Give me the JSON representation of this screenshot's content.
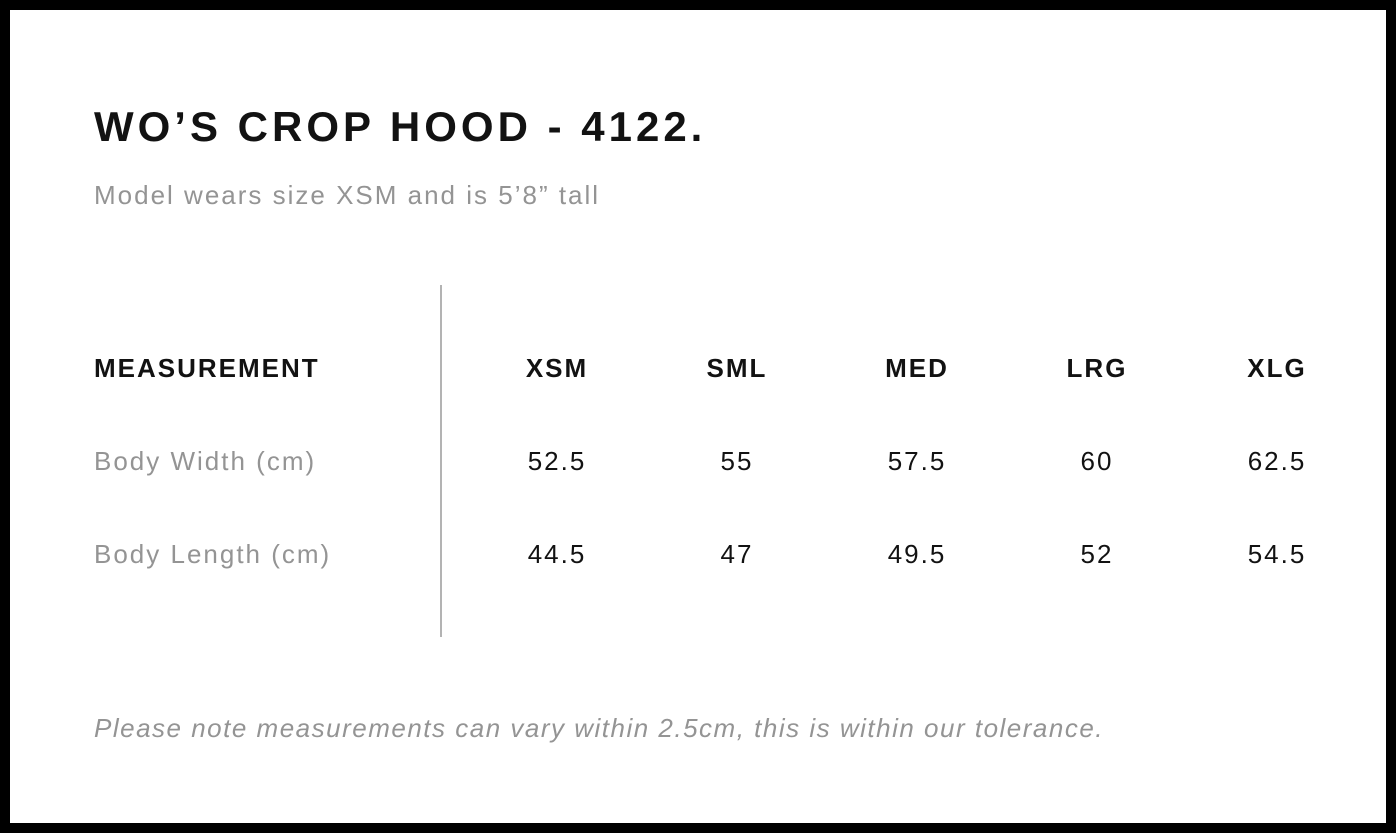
{
  "page": {
    "title": "WO’S CROP HOOD - 4122.",
    "subtitle": "Model wears size XSM and is 5’8” tall",
    "note": "Please note measurements can vary within 2.5cm, this is within our tolerance."
  },
  "size_chart": {
    "measurement_header": "MEASUREMENT",
    "columns": [
      "XSM",
      "SML",
      "MED",
      "LRG",
      "XLG"
    ],
    "rows": [
      {
        "label": "Body Width (cm)",
        "values": [
          "52.5",
          "55",
          "57.5",
          "60",
          "62.5"
        ]
      },
      {
        "label": "Body Length (cm)",
        "values": [
          "44.5",
          "47",
          "49.5",
          "52",
          "54.5"
        ]
      }
    ]
  },
  "colors": {
    "frame_border": "#000000",
    "background": "#ffffff",
    "primary_text": "#121212",
    "muted_text": "#949494",
    "divider": "#b3b3b3"
  }
}
